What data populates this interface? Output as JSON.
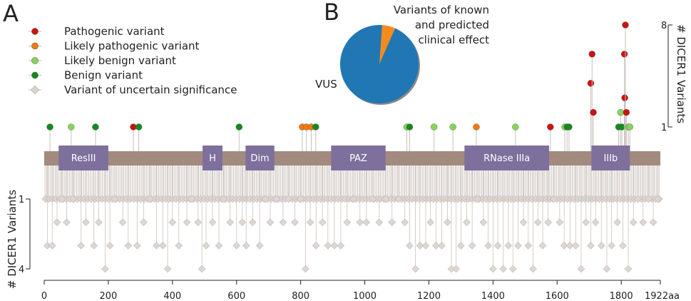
{
  "chart_data": [
    {
      "type": "lollipop",
      "panel": "A",
      "protein_length_label": "1922aa",
      "protein_length": 1922,
      "xaxis": {
        "ticks": [
          0,
          200,
          400,
          600,
          800,
          1000,
          1200,
          1400,
          1600,
          1800
        ],
        "ticks_text": [
          "0",
          "200",
          "400",
          "600",
          "800",
          "1000",
          "1200",
          "1400",
          "1600",
          "1800"
        ]
      },
      "upper_ylabel": "# DICER1 Variants",
      "upper_yticks": [
        "1",
        "8"
      ],
      "upper_ylim": [
        1,
        8
      ],
      "lower_ylabel": "# DICER1 Variants",
      "lower_yticks": [
        "1",
        "4"
      ],
      "lower_ylim": [
        1,
        4
      ],
      "legend": [
        {
          "key": "pathogenic",
          "label": "Pathogenic variant",
          "color": "#cc1212"
        },
        {
          "key": "likely_pathogenic",
          "label": "Likely pathogenic variant",
          "color": "#f07a10"
        },
        {
          "key": "likely_benign",
          "label": "Likely benign variant",
          "color": "#86d45a"
        },
        {
          "key": "benign",
          "label": "Benign variant",
          "color": "#148a1e"
        },
        {
          "key": "vus",
          "label": "Variant of uncertain significance",
          "color": "#d9d3cf"
        }
      ],
      "domains": [
        {
          "name": "ResIII",
          "start": 45,
          "end": 200
        },
        {
          "name": "H",
          "start": 494,
          "end": 556
        },
        {
          "name": "Dim",
          "start": 628,
          "end": 718
        },
        {
          "name": "PAZ",
          "start": 895,
          "end": 1065
        },
        {
          "name": "RNase IIIa",
          "start": 1311,
          "end": 1575
        },
        {
          "name": "IIIb",
          "start": 1707,
          "end": 1827
        }
      ],
      "upper_variants": [
        {
          "pos": 18,
          "count": 1,
          "class": "benign"
        },
        {
          "pos": 84,
          "count": 1,
          "class": "likely_benign"
        },
        {
          "pos": 160,
          "count": 1,
          "class": "benign"
        },
        {
          "pos": 278,
          "count": 1,
          "class": "pathogenic"
        },
        {
          "pos": 295,
          "count": 1,
          "class": "benign"
        },
        {
          "pos": 608,
          "count": 1,
          "class": "benign"
        },
        {
          "pos": 805,
          "count": 1,
          "class": "likely_pathogenic"
        },
        {
          "pos": 818,
          "count": 1,
          "class": "likely_pathogenic"
        },
        {
          "pos": 833,
          "count": 1,
          "class": "likely_pathogenic"
        },
        {
          "pos": 847,
          "count": 1,
          "class": "benign"
        },
        {
          "pos": 1131,
          "count": 1,
          "class": "likely_benign"
        },
        {
          "pos": 1140,
          "count": 1,
          "class": "benign"
        },
        {
          "pos": 1216,
          "count": 1,
          "class": "likely_benign"
        },
        {
          "pos": 1275,
          "count": 1,
          "class": "likely_benign"
        },
        {
          "pos": 1348,
          "count": 1,
          "class": "likely_pathogenic"
        },
        {
          "pos": 1470,
          "count": 1,
          "class": "likely_benign"
        },
        {
          "pos": 1579,
          "count": 1,
          "class": "pathogenic"
        },
        {
          "pos": 1624,
          "count": 1,
          "class": "likely_benign"
        },
        {
          "pos": 1631,
          "count": 1,
          "class": "benign"
        },
        {
          "pos": 1637,
          "count": 1,
          "class": "benign"
        },
        {
          "pos": 1705,
          "count": 4,
          "class": "pathogenic"
        },
        {
          "pos": 1709,
          "count": 6,
          "class": "pathogenic"
        },
        {
          "pos": 1713,
          "count": 2,
          "class": "pathogenic"
        },
        {
          "pos": 1792,
          "count": 1,
          "class": "benign"
        },
        {
          "pos": 1798,
          "count": 2,
          "class": "likely_benign"
        },
        {
          "pos": 1802,
          "count": 1,
          "class": "benign"
        },
        {
          "pos": 1810,
          "count": 6,
          "class": "pathogenic"
        },
        {
          "pos": 1811,
          "count": 3,
          "class": "pathogenic"
        },
        {
          "pos": 1813,
          "count": 8,
          "class": "pathogenic"
        },
        {
          "pos": 1816,
          "count": 2,
          "class": "pathogenic"
        },
        {
          "pos": 1822,
          "count": 1,
          "class": "likely_benign"
        },
        {
          "pos": 1827,
          "count": 1,
          "class": "likely_benign"
        }
      ],
      "lower_variants_note": "VUS lollipops distributed along the protein; counts 1 to 4",
      "lower_variants": [
        {
          "pos": 10,
          "count": 3
        },
        {
          "pos": 25,
          "count": 3
        },
        {
          "pos": 40,
          "count": 2
        },
        {
          "pos": 55,
          "count": 1
        },
        {
          "pos": 70,
          "count": 2
        },
        {
          "pos": 90,
          "count": 1
        },
        {
          "pos": 115,
          "count": 3
        },
        {
          "pos": 130,
          "count": 2
        },
        {
          "pos": 155,
          "count": 3
        },
        {
          "pos": 170,
          "count": 2
        },
        {
          "pos": 190,
          "count": 4
        },
        {
          "pos": 205,
          "count": 3
        },
        {
          "pos": 220,
          "count": 1
        },
        {
          "pos": 245,
          "count": 2
        },
        {
          "pos": 262,
          "count": 3
        },
        {
          "pos": 290,
          "count": 3
        },
        {
          "pos": 310,
          "count": 2
        },
        {
          "pos": 330,
          "count": 1
        },
        {
          "pos": 350,
          "count": 3
        },
        {
          "pos": 370,
          "count": 3
        },
        {
          "pos": 385,
          "count": 4
        },
        {
          "pos": 400,
          "count": 2
        },
        {
          "pos": 420,
          "count": 3
        },
        {
          "pos": 445,
          "count": 2
        },
        {
          "pos": 460,
          "count": 1
        },
        {
          "pos": 480,
          "count": 2
        },
        {
          "pos": 492,
          "count": 4
        },
        {
          "pos": 505,
          "count": 3
        },
        {
          "pos": 525,
          "count": 2
        },
        {
          "pos": 545,
          "count": 3
        },
        {
          "pos": 560,
          "count": 1
        },
        {
          "pos": 580,
          "count": 2
        },
        {
          "pos": 600,
          "count": 3
        },
        {
          "pos": 618,
          "count": 2
        },
        {
          "pos": 630,
          "count": 3
        },
        {
          "pos": 650,
          "count": 2
        },
        {
          "pos": 672,
          "count": 3
        },
        {
          "pos": 690,
          "count": 1
        },
        {
          "pos": 705,
          "count": 2
        },
        {
          "pos": 725,
          "count": 1
        },
        {
          "pos": 745,
          "count": 2
        },
        {
          "pos": 762,
          "count": 1
        },
        {
          "pos": 782,
          "count": 2
        },
        {
          "pos": 800,
          "count": 1
        },
        {
          "pos": 815,
          "count": 4
        },
        {
          "pos": 830,
          "count": 2
        },
        {
          "pos": 848,
          "count": 3
        },
        {
          "pos": 868,
          "count": 2
        },
        {
          "pos": 885,
          "count": 3
        },
        {
          "pos": 905,
          "count": 3
        },
        {
          "pos": 925,
          "count": 3
        },
        {
          "pos": 945,
          "count": 2
        },
        {
          "pos": 965,
          "count": 1
        },
        {
          "pos": 985,
          "count": 2
        },
        {
          "pos": 1005,
          "count": 2
        },
        {
          "pos": 1025,
          "count": 1
        },
        {
          "pos": 1045,
          "count": 2
        },
        {
          "pos": 1065,
          "count": 1
        },
        {
          "pos": 1085,
          "count": 2
        },
        {
          "pos": 1105,
          "count": 1
        },
        {
          "pos": 1125,
          "count": 2
        },
        {
          "pos": 1140,
          "count": 3
        },
        {
          "pos": 1158,
          "count": 4
        },
        {
          "pos": 1172,
          "count": 3
        },
        {
          "pos": 1190,
          "count": 3
        },
        {
          "pos": 1205,
          "count": 2
        },
        {
          "pos": 1222,
          "count": 3
        },
        {
          "pos": 1240,
          "count": 3
        },
        {
          "pos": 1258,
          "count": 2
        },
        {
          "pos": 1270,
          "count": 4
        },
        {
          "pos": 1285,
          "count": 4
        },
        {
          "pos": 1300,
          "count": 3
        },
        {
          "pos": 1318,
          "count": 2
        },
        {
          "pos": 1335,
          "count": 3
        },
        {
          "pos": 1352,
          "count": 1
        },
        {
          "pos": 1370,
          "count": 2
        },
        {
          "pos": 1385,
          "count": 3
        },
        {
          "pos": 1400,
          "count": 4
        },
        {
          "pos": 1415,
          "count": 3
        },
        {
          "pos": 1432,
          "count": 4
        },
        {
          "pos": 1448,
          "count": 3
        },
        {
          "pos": 1462,
          "count": 4
        },
        {
          "pos": 1478,
          "count": 3
        },
        {
          "pos": 1495,
          "count": 2
        },
        {
          "pos": 1510,
          "count": 3
        },
        {
          "pos": 1525,
          "count": 4
        },
        {
          "pos": 1540,
          "count": 2
        },
        {
          "pos": 1555,
          "count": 3
        },
        {
          "pos": 1572,
          "count": 2
        },
        {
          "pos": 1590,
          "count": 1
        },
        {
          "pos": 1608,
          "count": 2
        },
        {
          "pos": 1622,
          "count": 3
        },
        {
          "pos": 1640,
          "count": 3
        },
        {
          "pos": 1658,
          "count": 3
        },
        {
          "pos": 1675,
          "count": 4
        },
        {
          "pos": 1690,
          "count": 2
        },
        {
          "pos": 1705,
          "count": 3
        },
        {
          "pos": 1720,
          "count": 2
        },
        {
          "pos": 1738,
          "count": 3
        },
        {
          "pos": 1755,
          "count": 4
        },
        {
          "pos": 1770,
          "count": 3
        },
        {
          "pos": 1788,
          "count": 2
        },
        {
          "pos": 1805,
          "count": 3
        },
        {
          "pos": 1822,
          "count": 4
        },
        {
          "pos": 1838,
          "count": 2
        },
        {
          "pos": 1852,
          "count": 1
        },
        {
          "pos": 1868,
          "count": 2
        },
        {
          "pos": 1885,
          "count": 1
        },
        {
          "pos": 1900,
          "count": 2
        },
        {
          "pos": 1915,
          "count": 1
        }
      ]
    },
    {
      "type": "pie",
      "panel": "B",
      "slices": [
        {
          "label": "VUS",
          "value": 94.5,
          "color": "#2176b4"
        },
        {
          "label": "Variants of known and predicted clinical effect",
          "value": 5.5,
          "color": "#f58a1f"
        }
      ],
      "annotation_lines": [
        "Variants of known",
        "and predicted",
        "clinical effect"
      ],
      "vus_label": "VUS"
    }
  ]
}
